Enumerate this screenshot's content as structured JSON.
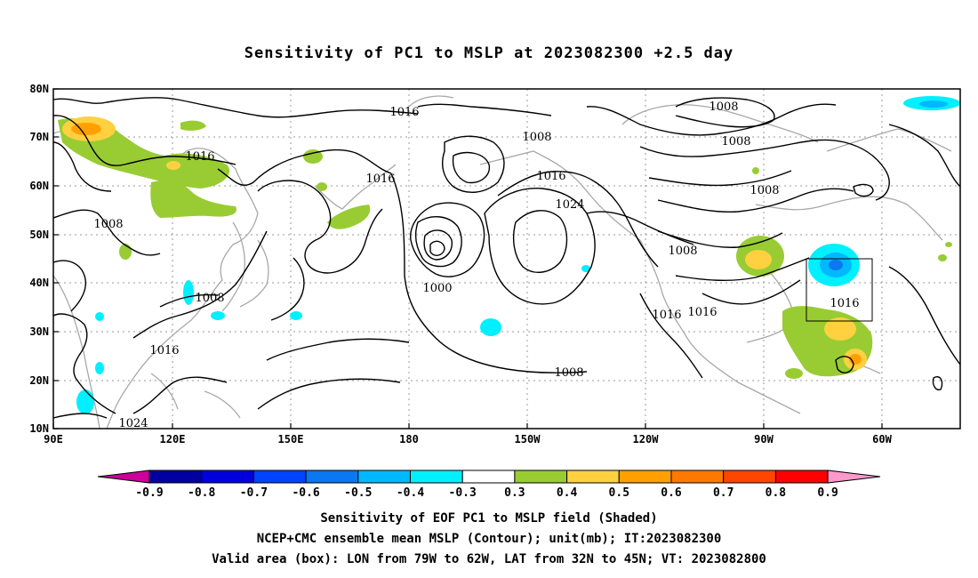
{
  "title": "Sensitivity of PC1 to MSLP at 2023082300 +2.5 day",
  "lat_ticks": [
    "80N",
    "70N",
    "60N",
    "50N",
    "40N",
    "30N",
    "20N",
    "10N"
  ],
  "lon_ticks": [
    "90E",
    "120E",
    "150E",
    "180",
    "150W",
    "120W",
    "90W",
    "60W"
  ],
  "contour_labels": [
    "1016",
    "1016",
    "1016",
    "1008",
    "1008",
    "1016",
    "1024",
    "1000",
    "1008",
    "1016",
    "1024",
    "1008",
    "1008",
    "1008",
    "1008",
    "1016",
    "1016",
    "1008",
    "1016"
  ],
  "colorbar": {
    "labels": [
      "-0.9",
      "-0.8",
      "-0.7",
      "-0.6",
      "-0.5",
      "-0.4",
      "-0.3",
      "0.3",
      "0.4",
      "0.5",
      "0.6",
      "0.7",
      "0.8",
      "0.9"
    ],
    "colors": [
      "#0000a0",
      "#0000dc",
      "#0044ff",
      "#0a78f0",
      "#00b8ff",
      "#00f0ff",
      "#ffffff",
      "#99cc33",
      "#ffd040",
      "#ffa000",
      "#ff7800",
      "#ff4600",
      "#ff0000"
    ],
    "low_end_color": "#cc0099",
    "high_end_color": "#ff99cc"
  },
  "captions": [
    "Sensitivity of EOF PC1 to MSLP field (Shaded)",
    "NCEP+CMC ensemble mean MSLP (Contour); unit(mb); IT:2023082300",
    "Valid area (box): LON from 79W to 62W, LAT from 32N to 45N; VT: 2023082800"
  ]
}
